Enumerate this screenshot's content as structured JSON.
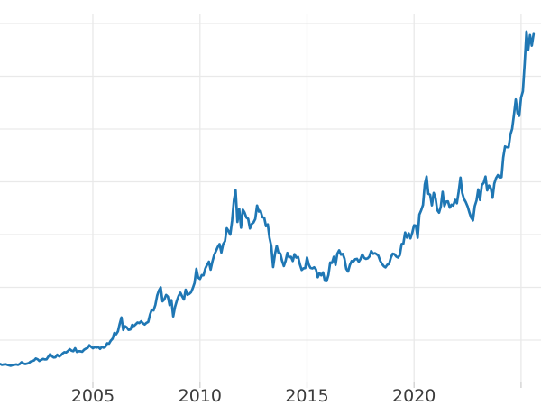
{
  "colors": {
    "line": "#1f77b4",
    "grid": "#e9e9e9",
    "tick": "#cfcfcf",
    "tick_label": "#3c3c3c",
    "background": "#ffffff"
  },
  "chart_data": {
    "type": "line",
    "title": "",
    "xlabel": "",
    "ylabel": "",
    "legend": "none",
    "grid": true,
    "note": "left and right plot edges are cropped; y-axis tick labels not visible in screenshot",
    "x_domain": [
      2000.66,
      2025.93
    ],
    "y_domain": [
      107,
      3594
    ],
    "x_ticks": [
      {
        "value": 2005,
        "label": "2005"
      },
      {
        "value": 2010,
        "label": "2010"
      },
      {
        "value": 2015,
        "label": "2015"
      },
      {
        "value": 2020,
        "label": "2020"
      },
      {
        "value": 2025,
        "label": ""
      }
    ],
    "y_gridlines": [
      500,
      1000,
      1500,
      2000,
      2500,
      3000,
      3500
    ],
    "series": [
      {
        "color": "#1f77b4",
        "start_year": 2000.667,
        "interval_years": 0.083333,
        "values": [
          274,
          266,
          269,
          272,
          266,
          262,
          257,
          263,
          267,
          270,
          266,
          274,
          291,
          280,
          274,
          277,
          282,
          296,
          302,
          308,
          326,
          319,
          303,
          313,
          322,
          317,
          318,
          343,
          368,
          347,
          335,
          338,
          362,
          346,
          355,
          374,
          386,
          383,
          397,
          415,
          400,
          395,
          423,
          388,
          394,
          394,
          390,
          409,
          419,
          425,
          451,
          436,
          423,
          434,
          428,
          434,
          417,
          436,
          428,
          437,
          470,
          466,
          494,
          513,
          568,
          555,
          583,
          652,
          715,
          596,
          632,
          621,
          597,
          601,
          644,
          634,
          650,
          667,
          662,
          678,
          660,
          648,
          663,
          673,
          742,
          788,
          782,
          834,
          922,
          972,
          1000,
          868,
          886,
          928,
          913,
          832,
          880,
          725,
          815,
          870,
          918,
          950,
          915,
          885,
          978,
          930,
          938,
          954,
          994,
          1042,
          1175,
          1092,
          1080,
          1116,
          1114,
          1178,
          1214,
          1243,
          1168,
          1245,
          1308,
          1345,
          1384,
          1410,
          1330,
          1410,
          1438,
          1560,
          1535,
          1500,
          1630,
          1825,
          1920,
          1620,
          1745,
          1565,
          1737,
          1710,
          1662,
          1650,
          1558,
          1600,
          1615,
          1648,
          1775,
          1718,
          1725,
          1664,
          1661,
          1580,
          1597,
          1470,
          1390,
          1192,
          1312,
          1394,
          1328,
          1322,
          1252,
          1202,
          1250,
          1327,
          1285,
          1290,
          1250,
          1315,
          1282,
          1288,
          1217,
          1165,
          1180,
          1183,
          1283,
          1214,
          1184,
          1180,
          1190,
          1172,
          1096,
          1134,
          1114,
          1142,
          1062,
          1060,
          1116,
          1235,
          1232,
          1290,
          1212,
          1320,
          1351,
          1310,
          1317,
          1273,
          1175,
          1150,
          1212,
          1250,
          1245,
          1267,
          1270,
          1242,
          1268,
          1312,
          1280,
          1270,
          1275,
          1292,
          1345,
          1318,
          1324,
          1315,
          1300,
          1252,
          1222,
          1200,
          1190,
          1214,
          1222,
          1282,
          1320,
          1315,
          1292,
          1282,
          1306,
          1410,
          1414,
          1520,
          1472,
          1512,
          1464,
          1517,
          1588,
          1585,
          1470,
          1690,
          1730,
          1780,
          1976,
          2050,
          1886,
          1878,
          1777,
          1895,
          1848,
          1732,
          1708,
          1768,
          1905,
          1770,
          1812,
          1815,
          1756,
          1783,
          1775,
          1829,
          1797,
          1909,
          2040,
          1897,
          1837,
          1807,
          1766,
          1711,
          1661,
          1634,
          1769,
          1824,
          1928,
          1827,
          1969,
          1990,
          2050,
          1919,
          1965,
          1940,
          1849,
          1984,
          2036,
          2063,
          2040,
          2044,
          2230,
          2335,
          2327,
          2327,
          2448,
          2503,
          2635,
          2780,
          2650,
          2625,
          2798,
          2858,
          3124,
          3425,
          3250,
          3390,
          3290,
          3400
        ]
      }
    ]
  }
}
